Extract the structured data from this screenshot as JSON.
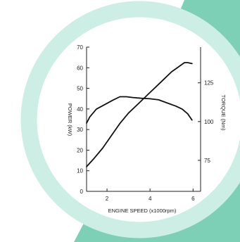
{
  "colors": {
    "accent": "#7dcfb6",
    "ring": "#cdeee4",
    "line": "#111111"
  },
  "chart_data": {
    "type": "line",
    "xlabel": "ENGINE SPEED (x1000rpm)",
    "ylabel_left": "POWER (kW)",
    "ylabel_right": "TORQUE (Nm)",
    "xlim": [
      1.05,
      6.35
    ],
    "ylim_left": [
      0,
      70
    ],
    "ylim_right": [
      55,
      148
    ],
    "x_ticks": [
      2,
      4,
      6
    ],
    "y_left_ticks": [
      0,
      10,
      20,
      30,
      40,
      50,
      60,
      70
    ],
    "y_right_ticks": [
      75,
      100,
      125
    ],
    "grid": false,
    "series": [
      {
        "axis": "left",
        "x": [
          1.05,
          1.4,
          1.8,
          2.2,
          2.6,
          3.0,
          3.5,
          4.0,
          4.5,
          5.0,
          5.4,
          5.6,
          5.75,
          5.95
        ],
        "values": [
          12,
          16,
          21,
          27,
          33,
          38,
          43,
          48,
          53,
          58,
          61,
          62.5,
          62.5,
          62
        ]
      },
      {
        "axis": "right",
        "x": [
          1.05,
          1.2,
          1.5,
          1.9,
          2.3,
          2.6,
          2.9,
          3.2,
          3.6,
          4.0,
          4.4,
          4.8,
          5.2,
          5.5,
          5.75,
          5.95
        ],
        "values": [
          99,
          103,
          108,
          111,
          114,
          116,
          116,
          115.5,
          115,
          114.7,
          114,
          112,
          110,
          108,
          105,
          101
        ]
      }
    ]
  }
}
